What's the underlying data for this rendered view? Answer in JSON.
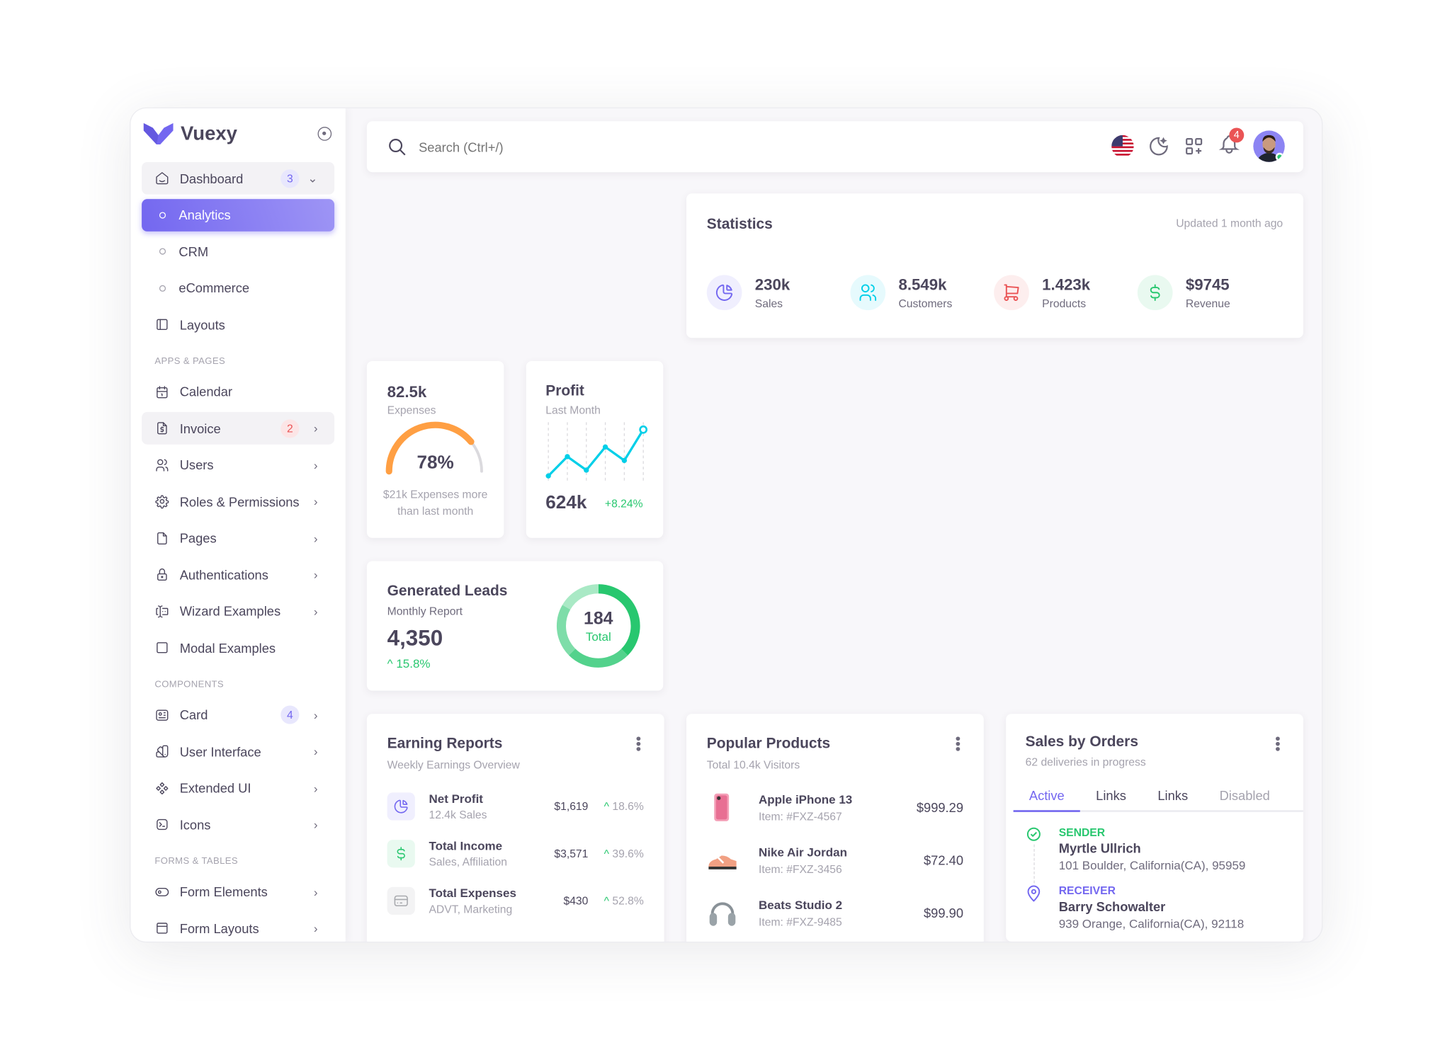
{
  "app": {
    "name": "Vuexy"
  },
  "sidebar": {
    "items": [
      {
        "label": "Dashboard",
        "icon": "smart-home-icon",
        "badge": "3",
        "badge_color": "#7367f0",
        "badge_bg": "#e8e7fd",
        "chevron": "down",
        "state": "open"
      },
      {
        "label": "Analytics",
        "icon": "circle-icon",
        "state": "active",
        "sub": true
      },
      {
        "label": "CRM",
        "icon": "circle-icon",
        "sub": true
      },
      {
        "label": "eCommerce",
        "icon": "circle-icon",
        "sub": true
      },
      {
        "label": "Layouts",
        "icon": "layout-sidebar-icon"
      },
      {
        "section": "APPS & PAGES"
      },
      {
        "label": "Calendar",
        "icon": "calendar-icon"
      },
      {
        "label": "Invoice",
        "icon": "file-dollar-icon",
        "badge": "2",
        "badge_color": "#ea5455",
        "badge_bg": "#fce5e6",
        "chevron": "right",
        "state": "open"
      },
      {
        "label": "Users",
        "icon": "users-icon",
        "chevron": "right"
      },
      {
        "label": "Roles & Permissions",
        "icon": "settings-icon",
        "chevron": "right"
      },
      {
        "label": "Pages",
        "icon": "file-icon",
        "chevron": "right"
      },
      {
        "label": "Authentications",
        "icon": "lock-icon",
        "chevron": "right"
      },
      {
        "label": "Wizard Examples",
        "icon": "forms-icon",
        "chevron": "right"
      },
      {
        "label": "Modal Examples",
        "icon": "square-icon"
      },
      {
        "section": "COMPONENTS"
      },
      {
        "label": "Card",
        "icon": "id-card-icon",
        "badge": "4",
        "badge_color": "#7367f0",
        "badge_bg": "#e8e7fd",
        "chevron": "right"
      },
      {
        "label": "User Interface",
        "icon": "color-swatch-icon",
        "chevron": "right"
      },
      {
        "label": "Extended UI",
        "icon": "components-icon",
        "chevron": "right"
      },
      {
        "label": "Icons",
        "icon": "brand-tabler-icon",
        "chevron": "right"
      },
      {
        "section": "FORMS & TABLES"
      },
      {
        "label": "Form Elements",
        "icon": "toggle-icon",
        "chevron": "right"
      },
      {
        "label": "Form Layouts",
        "icon": "layout-navbar-icon",
        "chevron": "right"
      }
    ]
  },
  "topbar": {
    "search_placeholder": "Search (Ctrl+/)",
    "notification_count": "4",
    "icons": [
      "us-flag-icon",
      "moon-stars-icon",
      "grid-add-icon",
      "bell-icon",
      "avatar"
    ]
  },
  "statistics": {
    "title": "Statistics",
    "updated": "Updated 1 month ago",
    "items": [
      {
        "value": "230k",
        "label": "Sales",
        "icon": "chart-pie-icon",
        "color": "#7367f0",
        "bg": "#f0effe"
      },
      {
        "value": "8.549k",
        "label": "Customers",
        "icon": "users-icon",
        "color": "#00cfe8",
        "bg": "#e6fafd"
      },
      {
        "value": "1.423k",
        "label": "Products",
        "icon": "shopping-cart-icon",
        "color": "#ea5455",
        "bg": "#fdeeee"
      },
      {
        "value": "$9745",
        "label": "Revenue",
        "icon": "currency-dollar-icon",
        "color": "#28c76f",
        "bg": "#e9f9f0"
      }
    ]
  },
  "expenses": {
    "value": "82.5k",
    "label": "Expenses",
    "percent": 78,
    "percent_label": "78%",
    "note_1": "$21k Expenses more",
    "note_2": "than last month",
    "color": "#ff9f43"
  },
  "profit": {
    "title": "Profit",
    "subtitle": "Last Month",
    "value": "624k",
    "change": "+8.24%",
    "color": "#00cfe8",
    "sparkline": [
      10,
      30,
      16,
      40,
      26,
      58
    ]
  },
  "leads": {
    "title": "Generated Leads",
    "subtitle": "Monthly Report",
    "value": "4,350",
    "change": "15.8%",
    "donut_value": "184",
    "donut_label": "Total",
    "segments": [
      {
        "value": 45,
        "color": "#28c76f"
      },
      {
        "value": 30,
        "color": "#53d28c"
      },
      {
        "value": 25,
        "color": "#7edda9"
      },
      {
        "value": 20,
        "color": "#a9e9c5"
      }
    ]
  },
  "earnings": {
    "title": "Earning Reports",
    "subtitle": "Weekly Earnings Overview",
    "rows": [
      {
        "title": "Net Profit",
        "sub": "12.4k Sales",
        "amount": "$1,619",
        "change": "18.6%",
        "icon": "chart-pie-icon",
        "color": "#7367f0",
        "bg": "#f0effe"
      },
      {
        "title": "Total Income",
        "sub": "Sales, Affiliation",
        "amount": "$3,571",
        "change": "39.6%",
        "icon": "currency-dollar-icon",
        "color": "#28c76f",
        "bg": "#e9f9f0"
      },
      {
        "title": "Total Expenses",
        "sub": "ADVT, Marketing",
        "amount": "$430",
        "change": "52.8%",
        "icon": "credit-card-icon",
        "color": "#a8aaae",
        "bg": "#f3f3f4"
      }
    ]
  },
  "popular": {
    "title": "Popular Products",
    "subtitle": "Total 10.4k Visitors",
    "rows": [
      {
        "name": "Apple iPhone 13",
        "item": "Item: #FXZ-4567",
        "price": "$999.29",
        "icon": "iphone-image"
      },
      {
        "name": "Nike Air Jordan",
        "item": "Item: #FXZ-3456",
        "price": "$72.40",
        "icon": "sneaker-image"
      },
      {
        "name": "Beats Studio 2",
        "item": "Item: #FXZ-9485",
        "price": "$99.90",
        "icon": "headphones-image"
      }
    ]
  },
  "orders": {
    "title": "Sales by Orders",
    "subtitle": "62 deliveries in progress",
    "tabs": [
      "Active",
      "Links",
      "Links",
      "Disabled"
    ],
    "sender": {
      "label": "SENDER",
      "name": "Myrtle Ullrich",
      "address": "101 Boulder, California(CA), 95959"
    },
    "receiver": {
      "label": "RECEIVER",
      "name": "Barry Schowalter",
      "address": "939 Orange, California(CA), 92118"
    }
  }
}
